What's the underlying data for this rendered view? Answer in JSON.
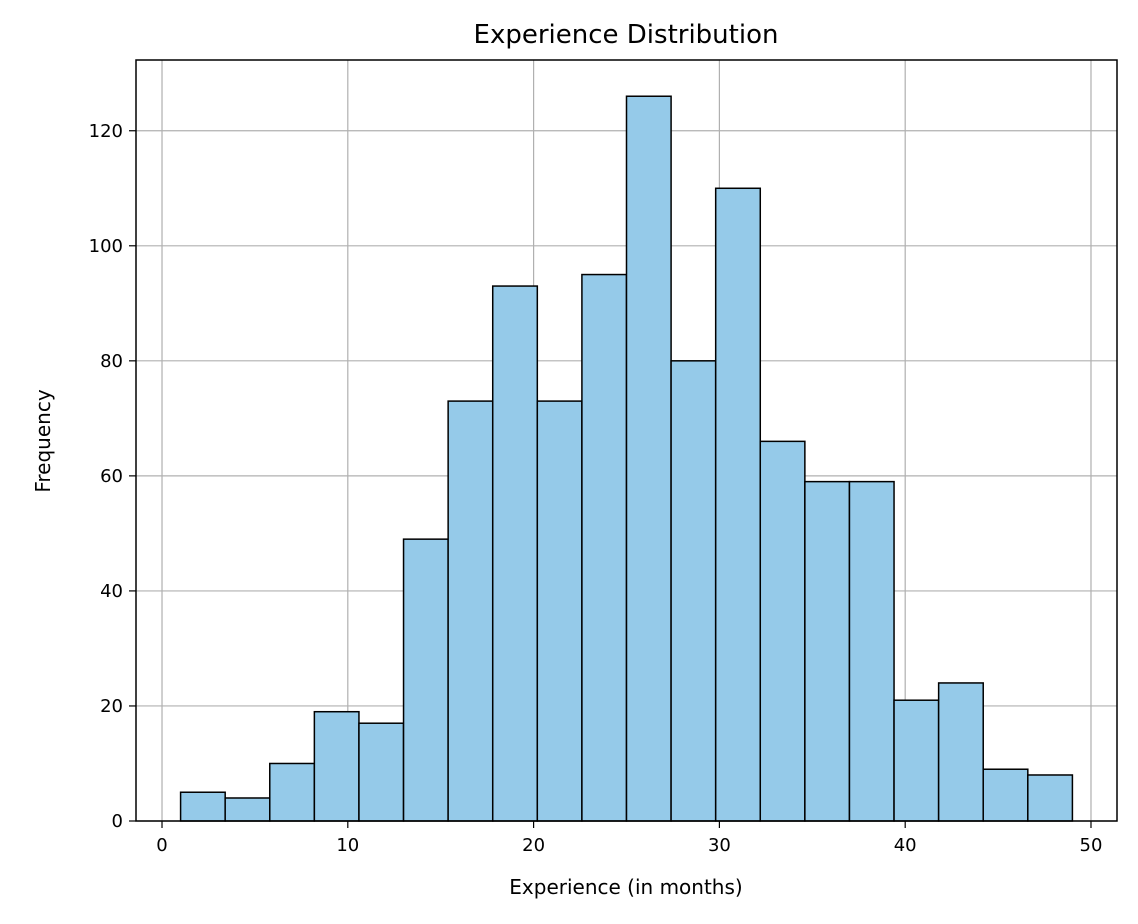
{
  "chart_data": {
    "type": "bar",
    "subtype": "histogram",
    "title": "Experience Distribution",
    "xlabel": "Experience (in months)",
    "ylabel": "Frequency",
    "xlim": [
      -1.4,
      51.4
    ],
    "ylim": [
      0,
      132.3
    ],
    "xticks": [
      0,
      10,
      20,
      30,
      40,
      50
    ],
    "yticks": [
      0,
      20,
      40,
      60,
      80,
      100,
      120
    ],
    "grid": true,
    "bar_color": "#95cae9",
    "edge_color": "#000000",
    "bins": [
      {
        "x0": 1.0,
        "x1": 3.4,
        "count": 5
      },
      {
        "x0": 3.4,
        "x1": 5.8,
        "count": 4
      },
      {
        "x0": 5.8,
        "x1": 8.2,
        "count": 10
      },
      {
        "x0": 8.2,
        "x1": 10.6,
        "count": 19
      },
      {
        "x0": 10.6,
        "x1": 13.0,
        "count": 17
      },
      {
        "x0": 13.0,
        "x1": 15.4,
        "count": 49
      },
      {
        "x0": 15.4,
        "x1": 17.8,
        "count": 73
      },
      {
        "x0": 17.8,
        "x1": 20.2,
        "count": 93
      },
      {
        "x0": 20.2,
        "x1": 22.6,
        "count": 73
      },
      {
        "x0": 22.6,
        "x1": 25.0,
        "count": 95
      },
      {
        "x0": 25.0,
        "x1": 27.4,
        "count": 126
      },
      {
        "x0": 27.4,
        "x1": 29.8,
        "count": 80
      },
      {
        "x0": 29.8,
        "x1": 32.2,
        "count": 110
      },
      {
        "x0": 32.2,
        "x1": 34.6,
        "count": 66
      },
      {
        "x0": 34.6,
        "x1": 37.0,
        "count": 59
      },
      {
        "x0": 37.0,
        "x1": 39.4,
        "count": 59
      },
      {
        "x0": 39.4,
        "x1": 41.8,
        "count": 21
      },
      {
        "x0": 41.8,
        "x1": 44.2,
        "count": 24
      },
      {
        "x0": 44.2,
        "x1": 46.6,
        "count": 9
      },
      {
        "x0": 46.6,
        "x1": 49.0,
        "count": 8
      }
    ]
  }
}
